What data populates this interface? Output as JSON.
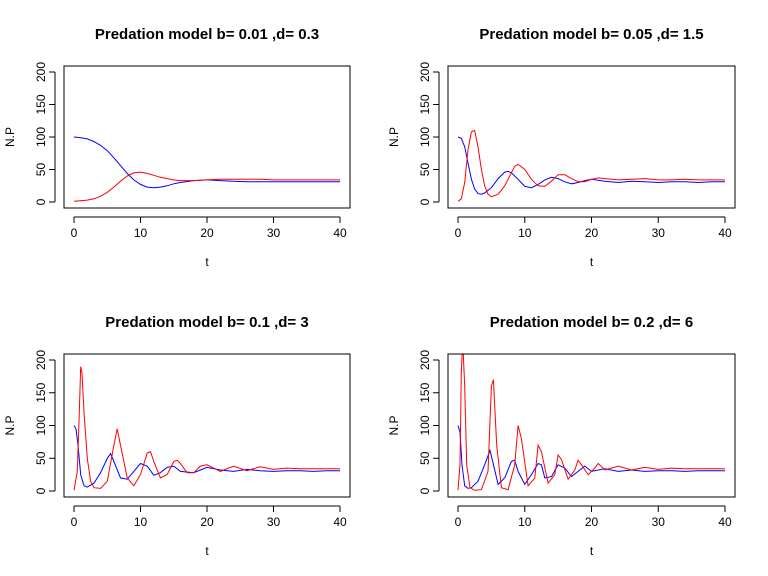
{
  "chart_data": [
    {
      "type": "line",
      "title": "Predation model b= 0.01 ,d= 0.3",
      "xlabel": "t",
      "ylabel": "N.P",
      "xlim": [
        0,
        40
      ],
      "ylim": [
        0,
        200
      ],
      "xticks": [
        0,
        10,
        20,
        30,
        40
      ],
      "yticks": [
        0,
        50,
        100,
        150,
        200
      ],
      "series": [
        {
          "color": "#0000ff",
          "x": [
            0,
            1,
            2,
            3,
            4,
            5,
            6,
            7,
            8,
            9,
            10,
            11,
            12,
            13,
            14,
            15,
            16,
            18,
            20,
            22,
            24,
            26,
            28,
            30,
            32,
            34,
            36,
            38,
            40
          ],
          "y": [
            100,
            99,
            97,
            93,
            87,
            79,
            68,
            56,
            44,
            34,
            27,
            23,
            22,
            23,
            25,
            28,
            30,
            33,
            34,
            33,
            32,
            31,
            31,
            31,
            31,
            31,
            31,
            31,
            31
          ]
        },
        {
          "color": "#ff0000",
          "x": [
            0,
            1,
            2,
            3,
            4,
            5,
            6,
            7,
            8,
            9,
            10,
            11,
            12,
            13,
            14,
            15,
            16,
            18,
            20,
            22,
            24,
            26,
            28,
            30,
            32,
            34,
            36,
            38,
            40
          ],
          "y": [
            1,
            2,
            3,
            5,
            9,
            15,
            23,
            32,
            40,
            45,
            46,
            44,
            41,
            38,
            36,
            34,
            33,
            33,
            34,
            35,
            35,
            35,
            35,
            34,
            34,
            34,
            34,
            34,
            34
          ]
        }
      ]
    },
    {
      "type": "line",
      "title": "Predation model b= 0.05 ,d= 1.5",
      "xlabel": "t",
      "ylabel": "N.P",
      "xlim": [
        0,
        40
      ],
      "ylim": [
        0,
        200
      ],
      "xticks": [
        0,
        10,
        20,
        30,
        40
      ],
      "yticks": [
        0,
        50,
        100,
        150,
        200
      ],
      "series": [
        {
          "color": "#0000ff",
          "x": [
            0,
            0.5,
            1,
            1.5,
            2,
            2.5,
            3,
            3.5,
            4,
            5,
            6,
            7,
            7.5,
            8,
            9,
            10,
            11,
            12,
            13,
            14,
            15,
            16,
            17,
            18,
            19,
            20,
            22,
            24,
            26,
            28,
            30,
            32,
            34,
            36,
            38,
            40
          ],
          "y": [
            100,
            98,
            85,
            60,
            35,
            20,
            13,
            12,
            14,
            22,
            36,
            46,
            47,
            45,
            35,
            24,
            22,
            27,
            34,
            38,
            36,
            31,
            28,
            30,
            33,
            35,
            32,
            30,
            32,
            31,
            30,
            31,
            31,
            30,
            31,
            31
          ]
        },
        {
          "color": "#ff0000",
          "x": [
            0,
            0.5,
            1,
            1.5,
            2,
            2.5,
            3,
            3.5,
            4,
            4.5,
            5,
            6,
            7,
            8,
            8.5,
            9,
            10,
            11,
            12,
            13,
            14,
            15,
            16,
            17,
            18,
            19,
            20,
            21,
            22,
            24,
            26,
            28,
            30,
            32,
            34,
            36,
            38,
            40
          ],
          "y": [
            1,
            5,
            30,
            80,
            108,
            110,
            85,
            50,
            25,
            12,
            8,
            12,
            25,
            45,
            55,
            58,
            50,
            35,
            25,
            24,
            32,
            42,
            42,
            36,
            31,
            31,
            35,
            37,
            36,
            34,
            35,
            36,
            34,
            34,
            35,
            34,
            34,
            34
          ]
        }
      ]
    },
    {
      "type": "line",
      "title": "Predation model b= 0.1 ,d= 3",
      "xlabel": "t",
      "ylabel": "N.P",
      "xlim": [
        0,
        40
      ],
      "ylim": [
        0,
        200
      ],
      "xticks": [
        0,
        10,
        20,
        30,
        40
      ],
      "yticks": [
        0,
        50,
        100,
        150,
        200
      ],
      "series": [
        {
          "color": "#0000ff",
          "x": [
            0,
            0.3,
            0.6,
            1,
            1.5,
            2,
            3,
            4,
            5,
            5.5,
            6,
            7,
            8,
            9,
            10,
            11,
            12,
            13,
            14,
            15,
            16,
            18,
            20,
            22,
            24,
            26,
            28,
            30,
            32,
            34,
            36,
            38,
            40
          ],
          "y": [
            100,
            95,
            70,
            25,
            8,
            6,
            12,
            28,
            50,
            57,
            45,
            20,
            18,
            30,
            42,
            38,
            24,
            28,
            36,
            38,
            30,
            28,
            36,
            32,
            30,
            33,
            31,
            30,
            31,
            31,
            30,
            31,
            31
          ]
        },
        {
          "color": "#ff0000",
          "x": [
            0,
            0.5,
            0.8,
            1,
            1.2,
            1.5,
            2,
            2.5,
            3,
            4,
            5,
            6,
            6.5,
            7,
            8,
            9,
            10,
            11,
            11.5,
            12,
            13,
            14,
            15,
            15.5,
            16,
            17,
            18,
            19,
            20,
            22,
            24,
            26,
            28,
            30,
            32,
            34,
            36,
            38,
            40
          ],
          "y": [
            1,
            30,
            120,
            190,
            180,
            120,
            50,
            15,
            5,
            4,
            15,
            70,
            95,
            70,
            20,
            8,
            25,
            58,
            60,
            45,
            20,
            25,
            45,
            47,
            42,
            28,
            28,
            38,
            40,
            30,
            38,
            31,
            37,
            33,
            35,
            34,
            34,
            34,
            34
          ]
        }
      ]
    },
    {
      "type": "line",
      "title": "Predation model b= 0.2 ,d= 6",
      "xlabel": "t",
      "ylabel": "N.P",
      "xlim": [
        0,
        40
      ],
      "ylim": [
        0,
        200
      ],
      "xticks": [
        0,
        10,
        20,
        30,
        40
      ],
      "yticks": [
        0,
        50,
        100,
        150,
        200
      ],
      "series": [
        {
          "color": "#0000ff",
          "x": [
            0,
            0.3,
            0.6,
            1,
            1.5,
            2,
            3,
            4,
            4.8,
            5.2,
            6,
            7,
            8,
            8.5,
            9,
            10,
            11,
            12,
            12.5,
            13,
            14,
            15,
            16,
            17,
            18,
            19,
            20,
            22,
            24,
            26,
            28,
            30,
            32,
            34,
            36,
            38,
            40
          ],
          "y": [
            100,
            90,
            40,
            8,
            4,
            5,
            15,
            40,
            62,
            45,
            10,
            20,
            45,
            47,
            30,
            10,
            25,
            42,
            40,
            20,
            22,
            40,
            35,
            22,
            30,
            38,
            30,
            34,
            30,
            32,
            30,
            31,
            31,
            30,
            31,
            31,
            31
          ]
        },
        {
          "color": "#ff0000",
          "x": [
            0,
            0.3,
            0.5,
            0.7,
            1,
            1.3,
            1.8,
            2.5,
            3.5,
            4.5,
            5,
            5.3,
            5.8,
            6.5,
            7.5,
            8.5,
            9,
            9.5,
            10.5,
            11.5,
            12,
            12.5,
            13.5,
            14.5,
            15,
            15.5,
            16.5,
            17.5,
            18,
            18.5,
            19.5,
            20.5,
            21,
            22,
            24,
            26,
            28,
            30,
            32,
            34,
            36,
            38,
            40
          ],
          "y": [
            1,
            40,
            180,
            230,
            160,
            40,
            5,
            1,
            2,
            30,
            160,
            170,
            70,
            5,
            2,
            40,
            100,
            80,
            8,
            20,
            70,
            60,
            12,
            25,
            55,
            48,
            18,
            32,
            47,
            40,
            25,
            35,
            42,
            32,
            38,
            32,
            36,
            33,
            35,
            34,
            34,
            34,
            34
          ]
        }
      ]
    }
  ]
}
